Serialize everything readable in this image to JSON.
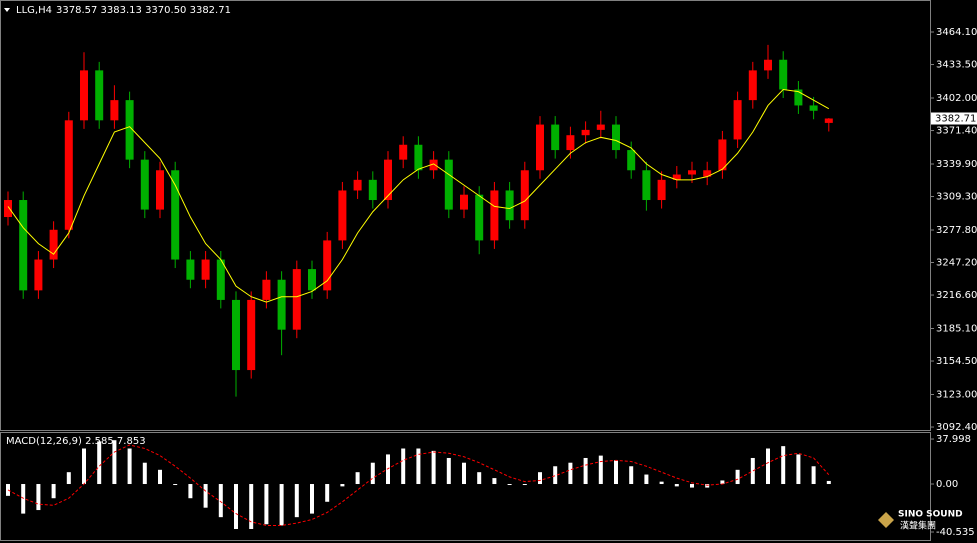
{
  "chart_data": {
    "type": "candlestick",
    "title": "LLG,H4",
    "ohlc_text": "3378.57 3383.13 3370.50 3382.71",
    "up_color": "#ff0000",
    "down_color": "#00b000",
    "open": [
      3290,
      3306,
      3221,
      3250,
      3278,
      3381,
      3428,
      3381,
      3400,
      3344,
      3297,
      3334,
      3250,
      3231,
      3250,
      3212,
      3146,
      3212,
      3231,
      3184,
      3241,
      3221,
      3268,
      3315,
      3325,
      3306,
      3344,
      3358,
      3334,
      3344,
      3297,
      3311,
      3268,
      3315,
      3287,
      3334,
      3377,
      3353,
      3367,
      3372,
      3377,
      3353,
      3334,
      3306,
      3325,
      3330,
      3328,
      3334,
      3363,
      3400,
      3428,
      3438,
      3410,
      3395,
      3378.57
    ],
    "high": [
      3314,
      3314,
      3258,
      3286,
      3389,
      3445,
      3436,
      3414,
      3408,
      3352,
      3342,
      3342,
      3258,
      3258,
      3258,
      3220,
      3220,
      3239,
      3239,
      3249,
      3249,
      3276,
      3323,
      3333,
      3333,
      3352,
      3366,
      3366,
      3352,
      3352,
      3319,
      3319,
      3323,
      3323,
      3342,
      3385,
      3385,
      3375,
      3380,
      3390,
      3385,
      3361,
      3342,
      3333,
      3338,
      3342,
      3342,
      3371,
      3408,
      3436,
      3452,
      3446,
      3418,
      3403,
      3383.13
    ],
    "low": [
      3282,
      3213,
      3213,
      3242,
      3270,
      3373,
      3373,
      3373,
      3336,
      3289,
      3289,
      3242,
      3223,
      3223,
      3204,
      3121,
      3138,
      3204,
      3160,
      3176,
      3213,
      3213,
      3260,
      3307,
      3298,
      3298,
      3336,
      3326,
      3326,
      3289,
      3289,
      3255,
      3260,
      3279,
      3279,
      3326,
      3345,
      3345,
      3359,
      3364,
      3345,
      3326,
      3296,
      3298,
      3317,
      3322,
      3320,
      3326,
      3355,
      3392,
      3420,
      3402,
      3387,
      3382,
      3370.5
    ],
    "close": [
      3306,
      3221,
      3250,
      3278,
      3381,
      3428,
      3381,
      3400,
      3344,
      3297,
      3334,
      3250,
      3231,
      3250,
      3212,
      3146,
      3212,
      3231,
      3184,
      3241,
      3221,
      3268,
      3315,
      3325,
      3306,
      3344,
      3358,
      3334,
      3344,
      3297,
      3311,
      3268,
      3315,
      3287,
      3334,
      3377,
      3353,
      3367,
      3372,
      3377,
      3353,
      3334,
      3306,
      3325,
      3330,
      3334,
      3334,
      3363,
      3400,
      3428,
      3438,
      3410,
      3395,
      3390,
      3382.71
    ],
    "ma": {
      "color": "#ffff00",
      "values": [
        3300,
        3280,
        3265,
        3255,
        3275,
        3310,
        3340,
        3370,
        3375,
        3360,
        3345,
        3320,
        3290,
        3265,
        3250,
        3225,
        3215,
        3210,
        3215,
        3215,
        3220,
        3230,
        3250,
        3275,
        3295,
        3310,
        3325,
        3335,
        3340,
        3330,
        3320,
        3310,
        3300,
        3298,
        3305,
        3320,
        3335,
        3350,
        3360,
        3365,
        3362,
        3355,
        3340,
        3330,
        3325,
        3325,
        3328,
        3335,
        3350,
        3370,
        3395,
        3410,
        3408,
        3400,
        3392
      ]
    },
    "price_tag": 3382.71,
    "ylim": [
      3089.6,
      3491.4
    ],
    "yticks": [
      {
        "value": 3464.1,
        "label": "3464.10"
      },
      {
        "value": 3433.5,
        "label": "3433.50"
      },
      {
        "value": 3402.0,
        "label": "3402.00"
      },
      {
        "value": 3371.4,
        "label": "3371.40"
      },
      {
        "value": 3339.9,
        "label": "3339.90"
      },
      {
        "value": 3309.3,
        "label": "3309.30"
      },
      {
        "value": 3277.8,
        "label": "3277.80"
      },
      {
        "value": 3247.2,
        "label": "3247.20"
      },
      {
        "value": 3216.6,
        "label": "3216.60"
      },
      {
        "value": 3185.1,
        "label": "3185.10"
      },
      {
        "value": 3154.5,
        "label": "3154.50"
      },
      {
        "value": 3123.0,
        "label": "3123.00"
      },
      {
        "value": 3092.4,
        "label": "3092.40"
      }
    ],
    "macd": {
      "title": "MACD(12,26,9) 2.585 7.853",
      "histogram_color": "#ffffff",
      "signal_color": "#ff0000",
      "values": [
        -10,
        -25,
        -22,
        -12,
        10,
        30,
        36,
        37,
        30,
        18,
        12,
        0,
        -12,
        -20,
        -28,
        -38,
        -38,
        -34,
        -35,
        -28,
        -25,
        -15,
        -2,
        10,
        18,
        25,
        30,
        30,
        28,
        22,
        18,
        10,
        5,
        0,
        0,
        10,
        15,
        18,
        22,
        24,
        20,
        15,
        8,
        2,
        -2,
        -3,
        -3,
        3,
        12,
        22,
        30,
        32,
        25,
        15,
        2.585
      ],
      "signal": [
        -5,
        -12,
        -17,
        -18,
        -12,
        0,
        15,
        27,
        33,
        30,
        24,
        15,
        5,
        -6,
        -15,
        -25,
        -32,
        -35,
        -35,
        -33,
        -30,
        -24,
        -15,
        -5,
        5,
        13,
        20,
        25,
        27,
        26,
        23,
        18,
        12,
        6,
        2,
        3,
        7,
        12,
        16,
        19,
        20,
        19,
        15,
        10,
        5,
        1,
        -1,
        0,
        4,
        11,
        18,
        24,
        26,
        22,
        7.853
      ],
      "ylim": [
        -47.3,
        43.1
      ],
      "yticks": [
        37.998,
        {
          "value": 0,
          "label": "0.00"
        },
        -40.535
      ]
    }
  },
  "logo": {
    "name": "SINO SOUND",
    "chinese": "漢聲集團"
  }
}
